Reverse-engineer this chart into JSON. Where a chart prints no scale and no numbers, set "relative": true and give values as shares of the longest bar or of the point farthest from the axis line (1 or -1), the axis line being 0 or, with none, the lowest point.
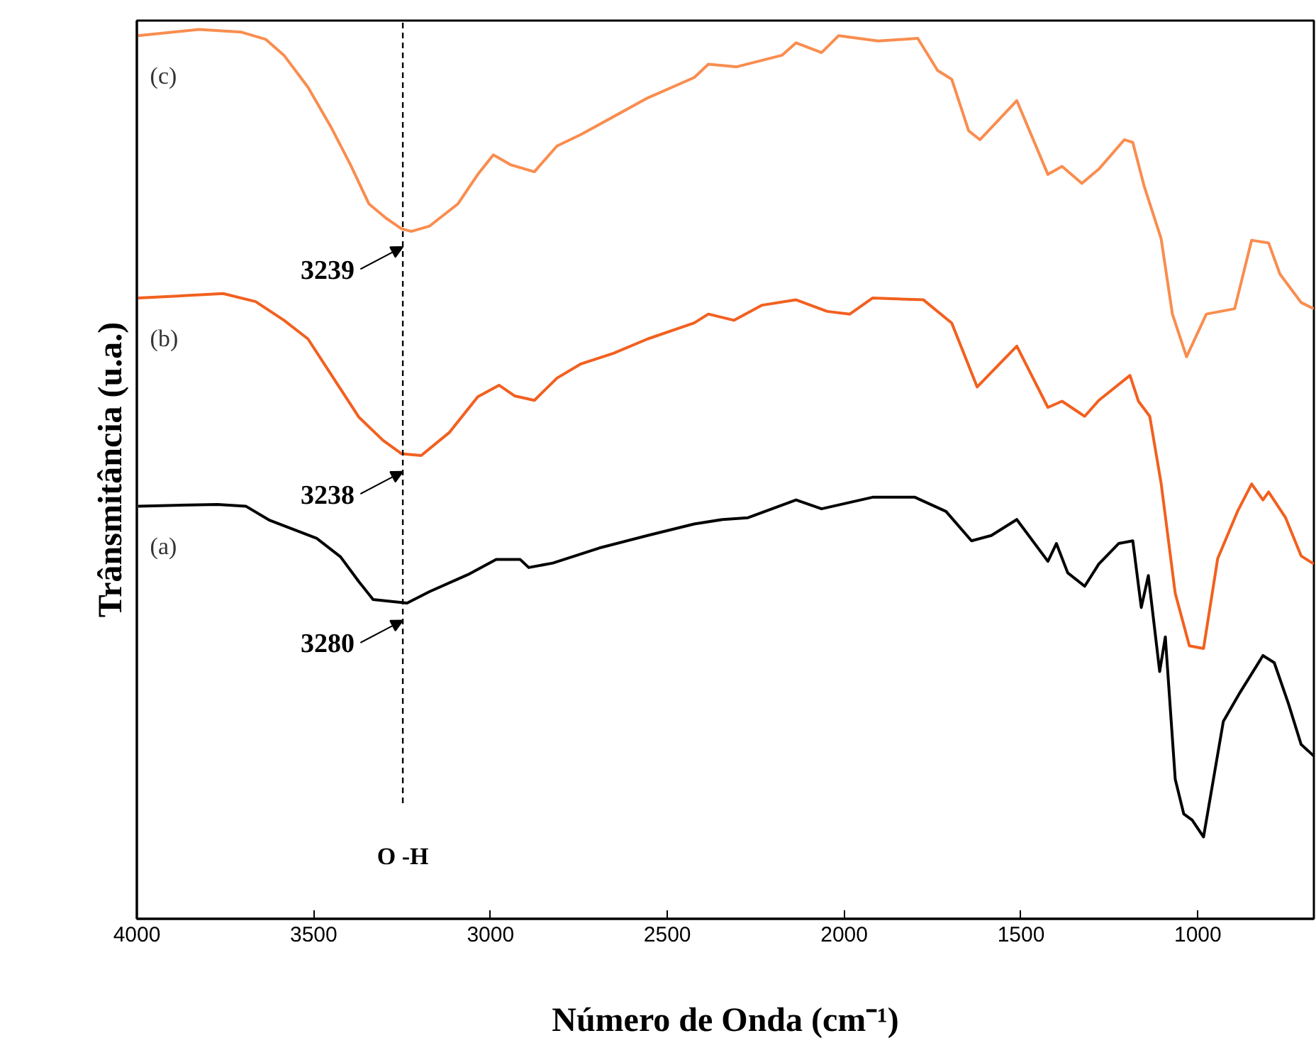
{
  "chart_data": {
    "type": "line",
    "relative": true,
    "xlabel": "Número de Onda (cm⁻¹)",
    "ylabel": "Trânsmitância (u.a.)",
    "xlim": [
      4000,
      672
    ],
    "xticks": [
      4000,
      3500,
      3000,
      2500,
      2000,
      1500,
      1000
    ],
    "grid": false,
    "tick_labels": "x",
    "series": [
      {
        "name": "(a)",
        "color": "#000000",
        "x": [
          3996,
          3772,
          3692,
          3624,
          3492,
          3424,
          3372,
          3332,
          3236,
          3172,
          3064,
          2984,
          2916,
          2892,
          2824,
          2692,
          2556,
          2424,
          2344,
          2272,
          2136,
          2064,
          1920,
          1800,
          1712,
          1640,
          1584,
          1512,
          1424,
          1400,
          1368,
          1320,
          1280,
          1224,
          1184,
          1160,
          1140,
          1108,
          1092,
          1064,
          1040,
          1016,
          984,
          928,
          880,
          816,
          784,
          744,
          708,
          672
        ],
        "values": [
          0.464,
          0.466,
          0.464,
          0.448,
          0.428,
          0.407,
          0.379,
          0.359,
          0.355,
          0.368,
          0.387,
          0.404,
          0.404,
          0.395,
          0.4,
          0.417,
          0.431,
          0.444,
          0.449,
          0.451,
          0.471,
          0.461,
          0.474,
          0.474,
          0.458,
          0.425,
          0.431,
          0.449,
          0.402,
          0.422,
          0.389,
          0.374,
          0.399,
          0.422,
          0.425,
          0.35,
          0.386,
          0.278,
          0.317,
          0.157,
          0.118,
          0.111,
          0.092,
          0.222,
          0.255,
          0.296,
          0.288,
          0.242,
          0.196,
          0.183
        ]
      },
      {
        "name": "(b)",
        "color": "#f2601f",
        "x": [
          3996,
          3756,
          3664,
          3584,
          3516,
          3436,
          3372,
          3304,
          3252,
          3196,
          3116,
          3036,
          2976,
          2932,
          2876,
          2812,
          2744,
          2652,
          2556,
          2424,
          2384,
          2312,
          2232,
          2136,
          2048,
          1984,
          1920,
          1776,
          1696,
          1624,
          1512,
          1424,
          1384,
          1320,
          1280,
          1192,
          1168,
          1136,
          1104,
          1064,
          1024,
          984,
          944,
          888,
          848,
          816,
          800,
          752,
          708,
          672
        ],
        "values": [
          0.698,
          0.703,
          0.694,
          0.673,
          0.652,
          0.603,
          0.564,
          0.538,
          0.523,
          0.521,
          0.547,
          0.587,
          0.6,
          0.588,
          0.583,
          0.608,
          0.624,
          0.636,
          0.652,
          0.67,
          0.68,
          0.673,
          0.69,
          0.696,
          0.683,
          0.68,
          0.698,
          0.696,
          0.67,
          0.598,
          0.644,
          0.575,
          0.582,
          0.565,
          0.583,
          0.611,
          0.582,
          0.565,
          0.49,
          0.366,
          0.307,
          0.304,
          0.405,
          0.458,
          0.489,
          0.471,
          0.48,
          0.451,
          0.408,
          0.399
        ]
      },
      {
        "name": "(c)",
        "color": "#f98d4f",
        "x": [
          3996,
          3824,
          3704,
          3636,
          3584,
          3516,
          3452,
          3396,
          3344,
          3296,
          3252,
          3224,
          3172,
          3092,
          3036,
          2992,
          2944,
          2876,
          2812,
          2744,
          2652,
          2556,
          2424,
          2384,
          2304,
          2176,
          2136,
          2064,
          2016,
          1904,
          1792,
          1736,
          1696,
          1648,
          1616,
          1512,
          1424,
          1384,
          1328,
          1280,
          1208,
          1184,
          1152,
          1104,
          1072,
          1032,
          976,
          896,
          848,
          800,
          768,
          708,
          672
        ],
        "values": [
          0.993,
          1.0,
          0.997,
          0.989,
          0.971,
          0.935,
          0.891,
          0.848,
          0.804,
          0.788,
          0.776,
          0.773,
          0.779,
          0.804,
          0.837,
          0.859,
          0.848,
          0.84,
          0.869,
          0.882,
          0.902,
          0.923,
          0.946,
          0.961,
          0.958,
          0.971,
          0.985,
          0.974,
          0.993,
          0.987,
          0.99,
          0.954,
          0.944,
          0.886,
          0.876,
          0.92,
          0.837,
          0.846,
          0.827,
          0.843,
          0.876,
          0.873,
          0.824,
          0.765,
          0.68,
          0.632,
          0.68,
          0.686,
          0.763,
          0.76,
          0.725,
          0.693,
          0.686
        ]
      }
    ],
    "ref_lines": [
      {
        "axis": "x",
        "value": 3248,
        "label": "O -H",
        "color": "#000000",
        "line_style": "dashed"
      }
    ],
    "annotations": [
      "3239",
      "3238",
      "3280"
    ]
  }
}
